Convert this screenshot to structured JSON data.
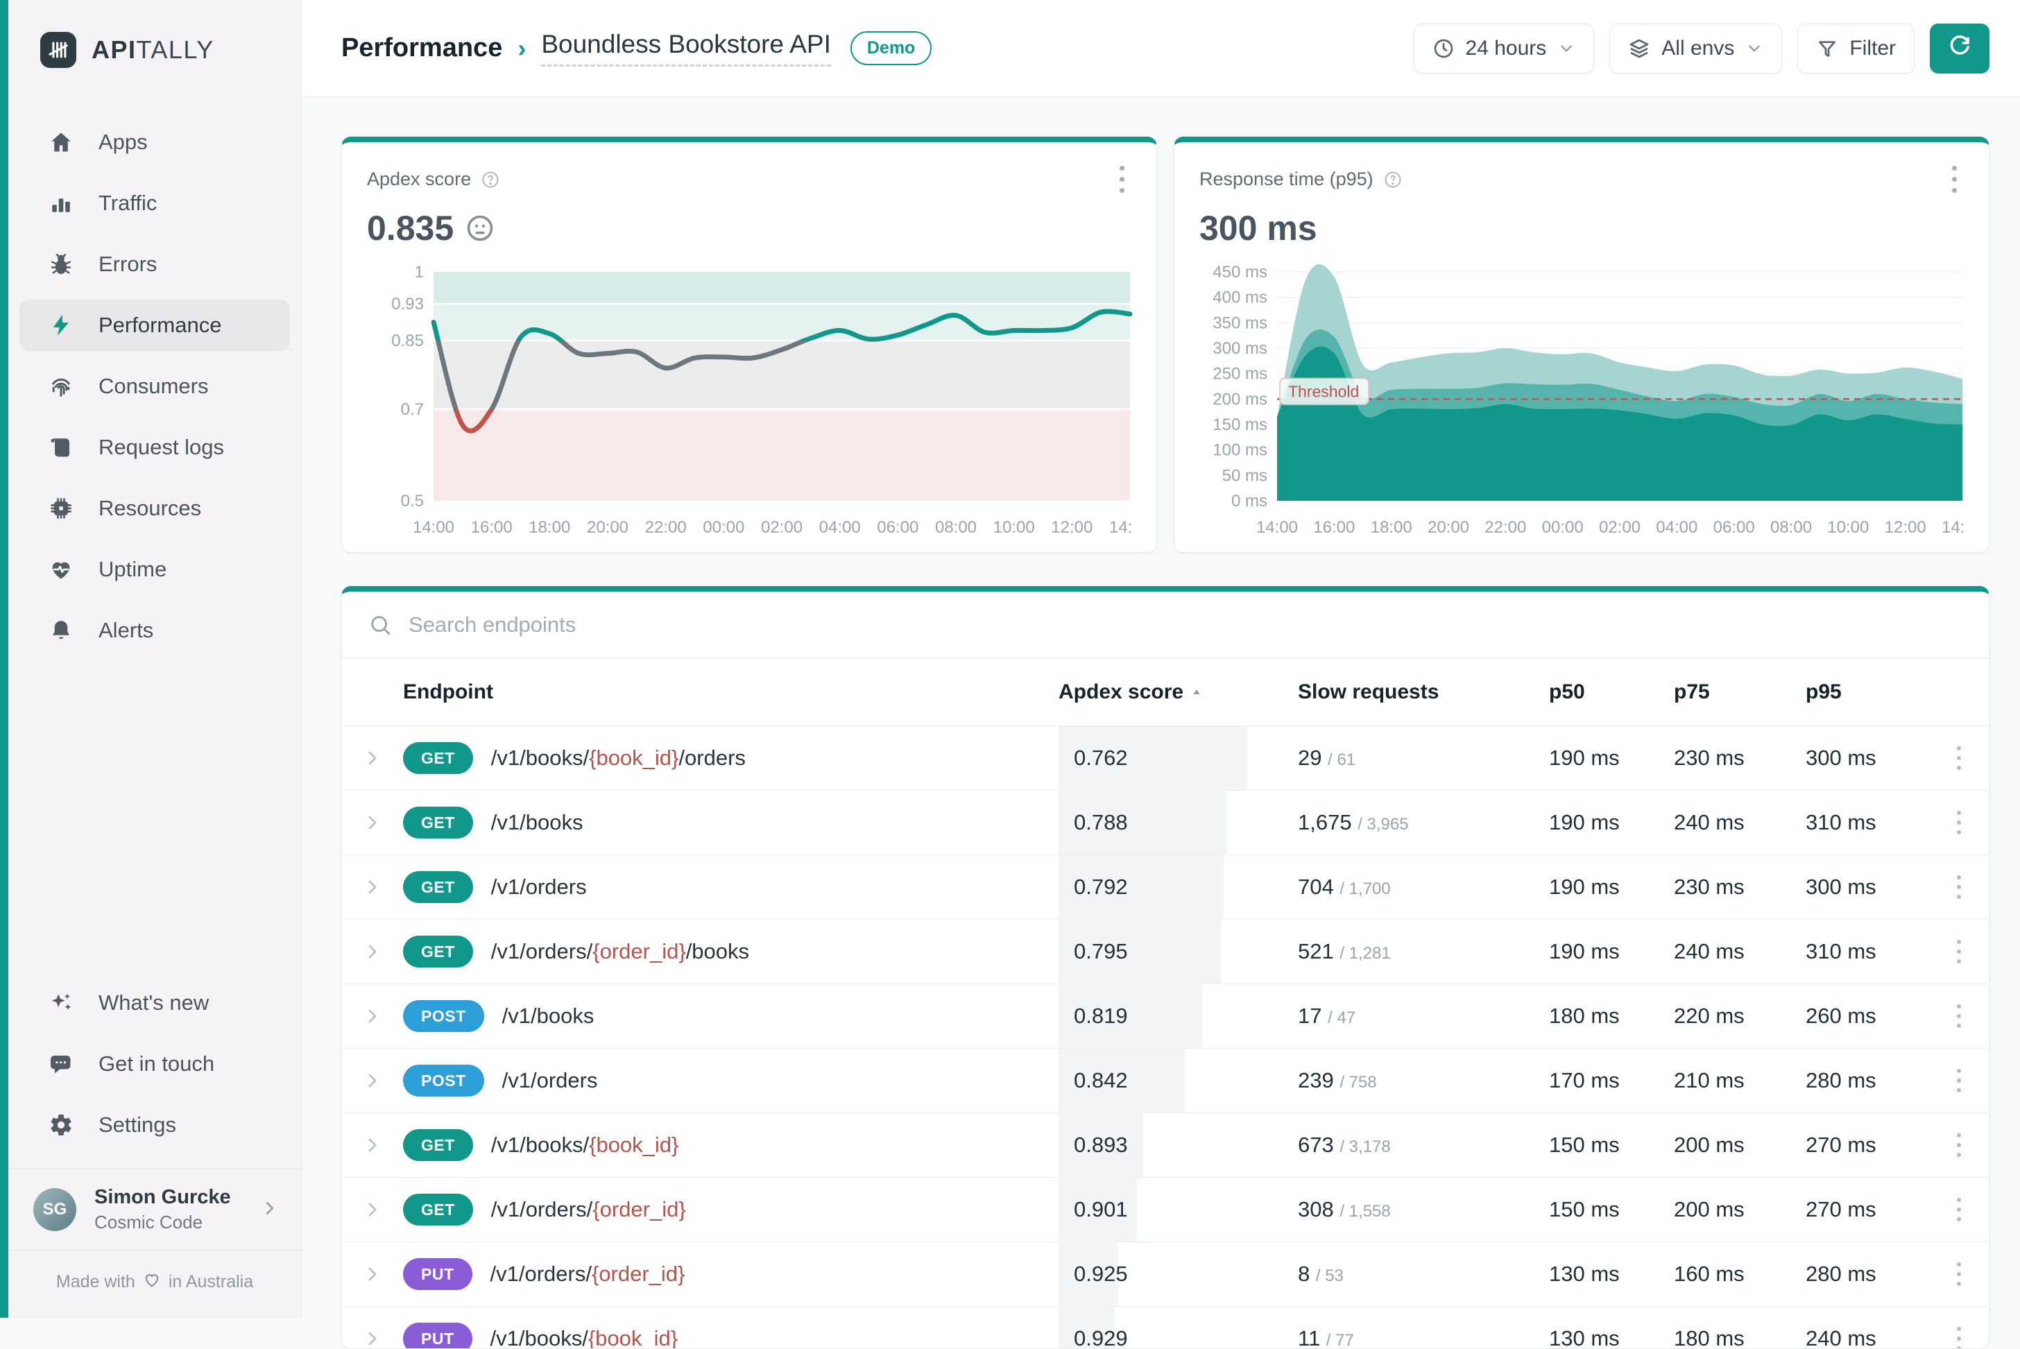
{
  "brand": {
    "bold": "API",
    "rest": "TALLY"
  },
  "sidebar": {
    "nav": [
      {
        "label": "Apps",
        "icon": "home",
        "active": false
      },
      {
        "label": "Traffic",
        "icon": "bar-chart",
        "active": false
      },
      {
        "label": "Errors",
        "icon": "bug",
        "active": false
      },
      {
        "label": "Performance",
        "icon": "bolt",
        "active": true
      },
      {
        "label": "Consumers",
        "icon": "fingerprint",
        "active": false
      },
      {
        "label": "Request logs",
        "icon": "scroll",
        "active": false
      },
      {
        "label": "Resources",
        "icon": "chip",
        "active": false
      },
      {
        "label": "Uptime",
        "icon": "heart-pulse",
        "active": false
      },
      {
        "label": "Alerts",
        "icon": "bell",
        "active": false
      }
    ],
    "footer_nav": [
      {
        "label": "What's new",
        "icon": "sparkles"
      },
      {
        "label": "Get in touch",
        "icon": "chat"
      },
      {
        "label": "Settings",
        "icon": "gear"
      }
    ],
    "user": {
      "name": "Simon Gurcke",
      "org": "Cosmic Code",
      "initials": "SG"
    },
    "made_with_prefix": "Made with",
    "made_with_suffix": "in Australia"
  },
  "header": {
    "breadcrumb_section": "Performance",
    "breadcrumb_app": "Boundless Bookstore API",
    "demo_badge": "Demo",
    "controls": {
      "time_range": "24 hours",
      "env": "All envs",
      "filter": "Filter"
    }
  },
  "cards": {
    "apdex": {
      "title": "Apdex score",
      "value": "0.835"
    },
    "response": {
      "title": "Response time (p95)",
      "value": "300 ms"
    }
  },
  "chart_data": [
    {
      "type": "line",
      "title": "Apdex score (24 hours)",
      "ylim": [
        0.5,
        1
      ],
      "yticks": [
        {
          "v": 1,
          "label": "1"
        },
        {
          "v": 0.93,
          "label": "0.93"
        },
        {
          "v": 0.85,
          "label": "0.85"
        },
        {
          "v": 0.7,
          "label": "0.7"
        },
        {
          "v": 0.5,
          "label": "0.5"
        }
      ],
      "bands": [
        {
          "from": 0.93,
          "to": 1,
          "color": "#d8ecea"
        },
        {
          "from": 0.85,
          "to": 0.93,
          "color": "#e4f2f0"
        },
        {
          "from": 0.7,
          "to": 0.85,
          "color": "#ececec"
        },
        {
          "from": 0.5,
          "to": 0.7,
          "color": "#f7e9e8"
        }
      ],
      "segment_colors": {
        "good": "#12988b",
        "mid": "#6d777d",
        "bad": "#c0534e"
      },
      "thresholds": {
        "good": 0.85,
        "bad": 0.7
      },
      "x_labels": [
        "14:00",
        "16:00",
        "18:00",
        "20:00",
        "22:00",
        "00:00",
        "02:00",
        "04:00",
        "06:00",
        "08:00",
        "10:00",
        "12:00",
        "14:00"
      ],
      "values": [
        0.89,
        0.665,
        0.7,
        0.857,
        0.865,
        0.822,
        0.822,
        0.825,
        0.79,
        0.812,
        0.814,
        0.812,
        0.83,
        0.855,
        0.872,
        0.853,
        0.862,
        0.885,
        0.905,
        0.868,
        0.872,
        0.872,
        0.878,
        0.912,
        0.908
      ]
    },
    {
      "type": "area",
      "title": "Response time (24 hours)",
      "ylim": [
        0,
        450
      ],
      "ytick_step": 50,
      "ytick_suffix": " ms",
      "grid": true,
      "x_labels": [
        "14:00",
        "16:00",
        "18:00",
        "20:00",
        "22:00",
        "00:00",
        "02:00",
        "04:00",
        "06:00",
        "08:00",
        "10:00",
        "12:00",
        "14:00"
      ],
      "threshold": {
        "value": 200,
        "label": "Threshold",
        "color": "#c0534e"
      },
      "series": [
        {
          "name": "p95",
          "color": "#a6d5d1",
          "values": [
            165,
            435,
            440,
            268,
            272,
            282,
            290,
            292,
            300,
            292,
            288,
            290,
            272,
            262,
            255,
            268,
            266,
            248,
            246,
            258,
            250,
            252,
            262,
            254,
            240
          ]
        },
        {
          "name": "p75",
          "color": "#55b4ac",
          "values": [
            165,
            318,
            322,
            206,
            218,
            220,
            220,
            222,
            231,
            229,
            228,
            230,
            218,
            205,
            196,
            210,
            204,
            190,
            188,
            210,
            196,
            210,
            200,
            193,
            190
          ]
        },
        {
          "name": "p50",
          "color": "#12988b",
          "values": [
            165,
            286,
            290,
            170,
            180,
            181,
            180,
            182,
            190,
            181,
            180,
            181,
            178,
            170,
            161,
            172,
            168,
            150,
            149,
            170,
            158,
            170,
            161,
            152,
            150
          ]
        }
      ]
    }
  ],
  "table": {
    "search_placeholder": "Search endpoints",
    "columns": [
      "Endpoint",
      "Apdex score",
      "Slow requests",
      "p50",
      "p75",
      "p95"
    ],
    "sorted_by": "Apdex score",
    "rows": [
      {
        "method": "GET",
        "path": [
          {
            "text": "/v1/books/"
          },
          {
            "text": "{book_id}",
            "param": true
          },
          {
            "text": "/orders"
          }
        ],
        "apdex": "0.762",
        "slow": "29",
        "slow_total": "61",
        "p50": "190 ms",
        "p75": "230 ms",
        "p95": "300 ms"
      },
      {
        "method": "GET",
        "path": [
          {
            "text": "/v1/books"
          }
        ],
        "apdex": "0.788",
        "slow": "1,675",
        "slow_total": "3,965",
        "p50": "190 ms",
        "p75": "240 ms",
        "p95": "310 ms"
      },
      {
        "method": "GET",
        "path": [
          {
            "text": "/v1/orders"
          }
        ],
        "apdex": "0.792",
        "slow": "704",
        "slow_total": "1,700",
        "p50": "190 ms",
        "p75": "230 ms",
        "p95": "300 ms"
      },
      {
        "method": "GET",
        "path": [
          {
            "text": "/v1/orders/"
          },
          {
            "text": "{order_id}",
            "param": true
          },
          {
            "text": "/books"
          }
        ],
        "apdex": "0.795",
        "slow": "521",
        "slow_total": "1,281",
        "p50": "190 ms",
        "p75": "240 ms",
        "p95": "310 ms"
      },
      {
        "method": "POST",
        "path": [
          {
            "text": "/v1/books"
          }
        ],
        "apdex": "0.819",
        "slow": "17",
        "slow_total": "47",
        "p50": "180 ms",
        "p75": "220 ms",
        "p95": "260 ms"
      },
      {
        "method": "POST",
        "path": [
          {
            "text": "/v1/orders"
          }
        ],
        "apdex": "0.842",
        "slow": "239",
        "slow_total": "758",
        "p50": "170 ms",
        "p75": "210 ms",
        "p95": "280 ms"
      },
      {
        "method": "GET",
        "path": [
          {
            "text": "/v1/books/"
          },
          {
            "text": "{book_id}",
            "param": true
          }
        ],
        "apdex": "0.893",
        "slow": "673",
        "slow_total": "3,178",
        "p50": "150 ms",
        "p75": "200 ms",
        "p95": "270 ms"
      },
      {
        "method": "GET",
        "path": [
          {
            "text": "/v1/orders/"
          },
          {
            "text": "{order_id}",
            "param": true
          }
        ],
        "apdex": "0.901",
        "slow": "308",
        "slow_total": "1,558",
        "p50": "150 ms",
        "p75": "200 ms",
        "p95": "270 ms"
      },
      {
        "method": "PUT",
        "path": [
          {
            "text": "/v1/orders/"
          },
          {
            "text": "{order_id}",
            "param": true
          }
        ],
        "apdex": "0.925",
        "slow": "8",
        "slow_total": "53",
        "p50": "130 ms",
        "p75": "160 ms",
        "p95": "280 ms"
      },
      {
        "method": "PUT",
        "path": [
          {
            "text": "/v1/books/"
          },
          {
            "text": "{book_id}",
            "param": true
          }
        ],
        "apdex": "0.929",
        "slow": "11",
        "slow_total": "77",
        "p50": "130 ms",
        "p75": "180 ms",
        "p95": "240 ms"
      }
    ]
  },
  "colors": {
    "accent": "#12988b",
    "method_get": "#12988b",
    "method_post": "#2d9fd8",
    "method_put": "#8a5cd8",
    "param_red": "#b5544d",
    "threshold_red": "#c0534e"
  }
}
